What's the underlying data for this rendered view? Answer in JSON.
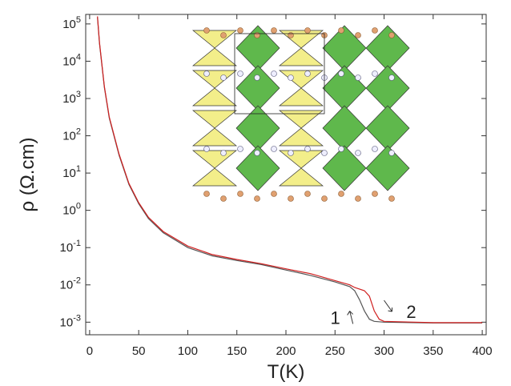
{
  "chart_data": {
    "type": "line",
    "x_label": "T(K)",
    "y_label": "ρ (Ω.cm)",
    "xlim": [
      -4,
      404
    ],
    "xticks": [
      0,
      50,
      100,
      150,
      200,
      250,
      300,
      350,
      400
    ],
    "ylim": [
      0.00046,
      180000
    ],
    "log_y": true,
    "yticks": [
      {
        "value": 0.001,
        "label": "10^-3"
      },
      {
        "value": 0.01,
        "label": "10^-2"
      },
      {
        "value": 0.1,
        "label": "10^-1"
      },
      {
        "value": 1,
        "label": "10^0"
      },
      {
        "value": 10,
        "label": "10^1"
      },
      {
        "value": 100,
        "label": "10^2"
      },
      {
        "value": 1000,
        "label": "10^3"
      },
      {
        "value": 10000,
        "label": "10^4"
      },
      {
        "value": 100000,
        "label": "10^5"
      }
    ],
    "series": [
      {
        "color": "#555555",
        "x": [
          8,
          10,
          15,
          20,
          30,
          40,
          50,
          60,
          75,
          100,
          125,
          150,
          175,
          200,
          225,
          250,
          265,
          270,
          275,
          280,
          285,
          290,
          300,
          350,
          400
        ],
        "values": [
          150000,
          30000,
          2000,
          300,
          30,
          5,
          1.5,
          0.6,
          0.25,
          0.1,
          0.06,
          0.045,
          0.035,
          0.025,
          0.018,
          0.012,
          0.009,
          0.007,
          0.004,
          0.002,
          0.0012,
          0.00105,
          0.001,
          0.00095,
          0.00095
        ]
      },
      {
        "color": "#d02020",
        "x": [
          8,
          10,
          15,
          20,
          30,
          40,
          50,
          60,
          75,
          100,
          125,
          150,
          175,
          200,
          225,
          250,
          265,
          270,
          280,
          285,
          290,
          295,
          300,
          350,
          400
        ],
        "values": [
          160000,
          32000,
          2100,
          320,
          32,
          5.3,
          1.6,
          0.65,
          0.27,
          0.11,
          0.065,
          0.048,
          0.037,
          0.027,
          0.02,
          0.013,
          0.01,
          0.0085,
          0.007,
          0.005,
          0.002,
          0.0012,
          0.00105,
          0.00097,
          0.00097
        ]
      }
    ],
    "annotations": [
      {
        "text": "1",
        "x": 265,
        "y": 0.0009
      },
      {
        "text": "2",
        "x": 313,
        "y": 0.0013
      }
    ]
  }
}
